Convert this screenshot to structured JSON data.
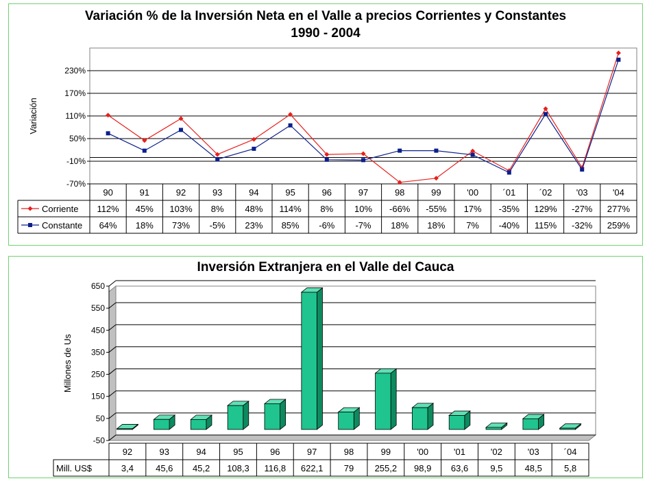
{
  "chart_data": [
    {
      "type": "line",
      "title": "Variación % de la Inversión Neta en el Valle a precios Corrientes y Constantes",
      "subtitle": "1990 - 2004",
      "ylabel": "Variación",
      "xlabel": "",
      "ylim": [
        -70,
        290
      ],
      "yticks": [
        "230%",
        "170%",
        "110%",
        "50%",
        "-10%",
        "-70%"
      ],
      "ytick_values": [
        230,
        170,
        110,
        50,
        -10,
        -70
      ],
      "categories": [
        "90",
        "91",
        "92",
        "93",
        "94",
        "95",
        "96",
        "97",
        "98",
        "99",
        "'00",
        "´01",
        "´02",
        "'03",
        "'04"
      ],
      "series": [
        {
          "name": "Corriente",
          "color": "#e8201c",
          "marker": "diamond",
          "values": [
            112,
            45,
            103,
            8,
            48,
            114,
            8,
            10,
            -66,
            -55,
            17,
            -35,
            129,
            -27,
            277
          ],
          "labels": [
            "112%",
            "45%",
            "103%",
            "8%",
            "48%",
            "114%",
            "8%",
            "10%",
            "-66%",
            "-55%",
            "17%",
            "-35%",
            "129%",
            "-27%",
            "277%"
          ]
        },
        {
          "name": "Constante",
          "color": "#0b1f8c",
          "marker": "square",
          "values": [
            64,
            18,
            73,
            -5,
            23,
            85,
            -6,
            -7,
            18,
            18,
            7,
            -40,
            115,
            -32,
            259
          ],
          "labels": [
            "64%",
            "18%",
            "73%",
            "-5%",
            "23%",
            "85%",
            "-6%",
            "-7%",
            "18%",
            "18%",
            "7%",
            "-40%",
            "115%",
            "-32%",
            "259%"
          ]
        }
      ],
      "grid": true,
      "legend": "data-table"
    },
    {
      "type": "bar",
      "title": "Inversión Extranjera en el Valle del Cauca",
      "ylabel": "Millones de Us",
      "xlabel": "",
      "ylim": [
        -50,
        650
      ],
      "yticks": [
        "650",
        "550",
        "450",
        "350",
        "250",
        "150",
        "50",
        "-50"
      ],
      "ytick_values": [
        650,
        550,
        450,
        350,
        250,
        150,
        50,
        -50
      ],
      "categories": [
        "92",
        "93",
        "94",
        "95",
        "96",
        "97",
        "98",
        "99",
        "'00",
        "'01",
        "'02",
        "'03",
        "´04"
      ],
      "series": [
        {
          "name": "Mill. US$",
          "color": "#1fc48f",
          "values": [
            3.4,
            45.6,
            45.2,
            108.3,
            116.8,
            622.1,
            79,
            255.2,
            98.9,
            63.6,
            9.5,
            48.5,
            5.8
          ],
          "labels": [
            "3,4",
            "45,6",
            "45,2",
            "108,3",
            "116,8",
            "622,1",
            "79",
            "255,2",
            "98,9",
            "63,6",
            "9,5",
            "48,5",
            "5,8"
          ]
        }
      ],
      "grid": true,
      "legend": "data-table"
    }
  ]
}
